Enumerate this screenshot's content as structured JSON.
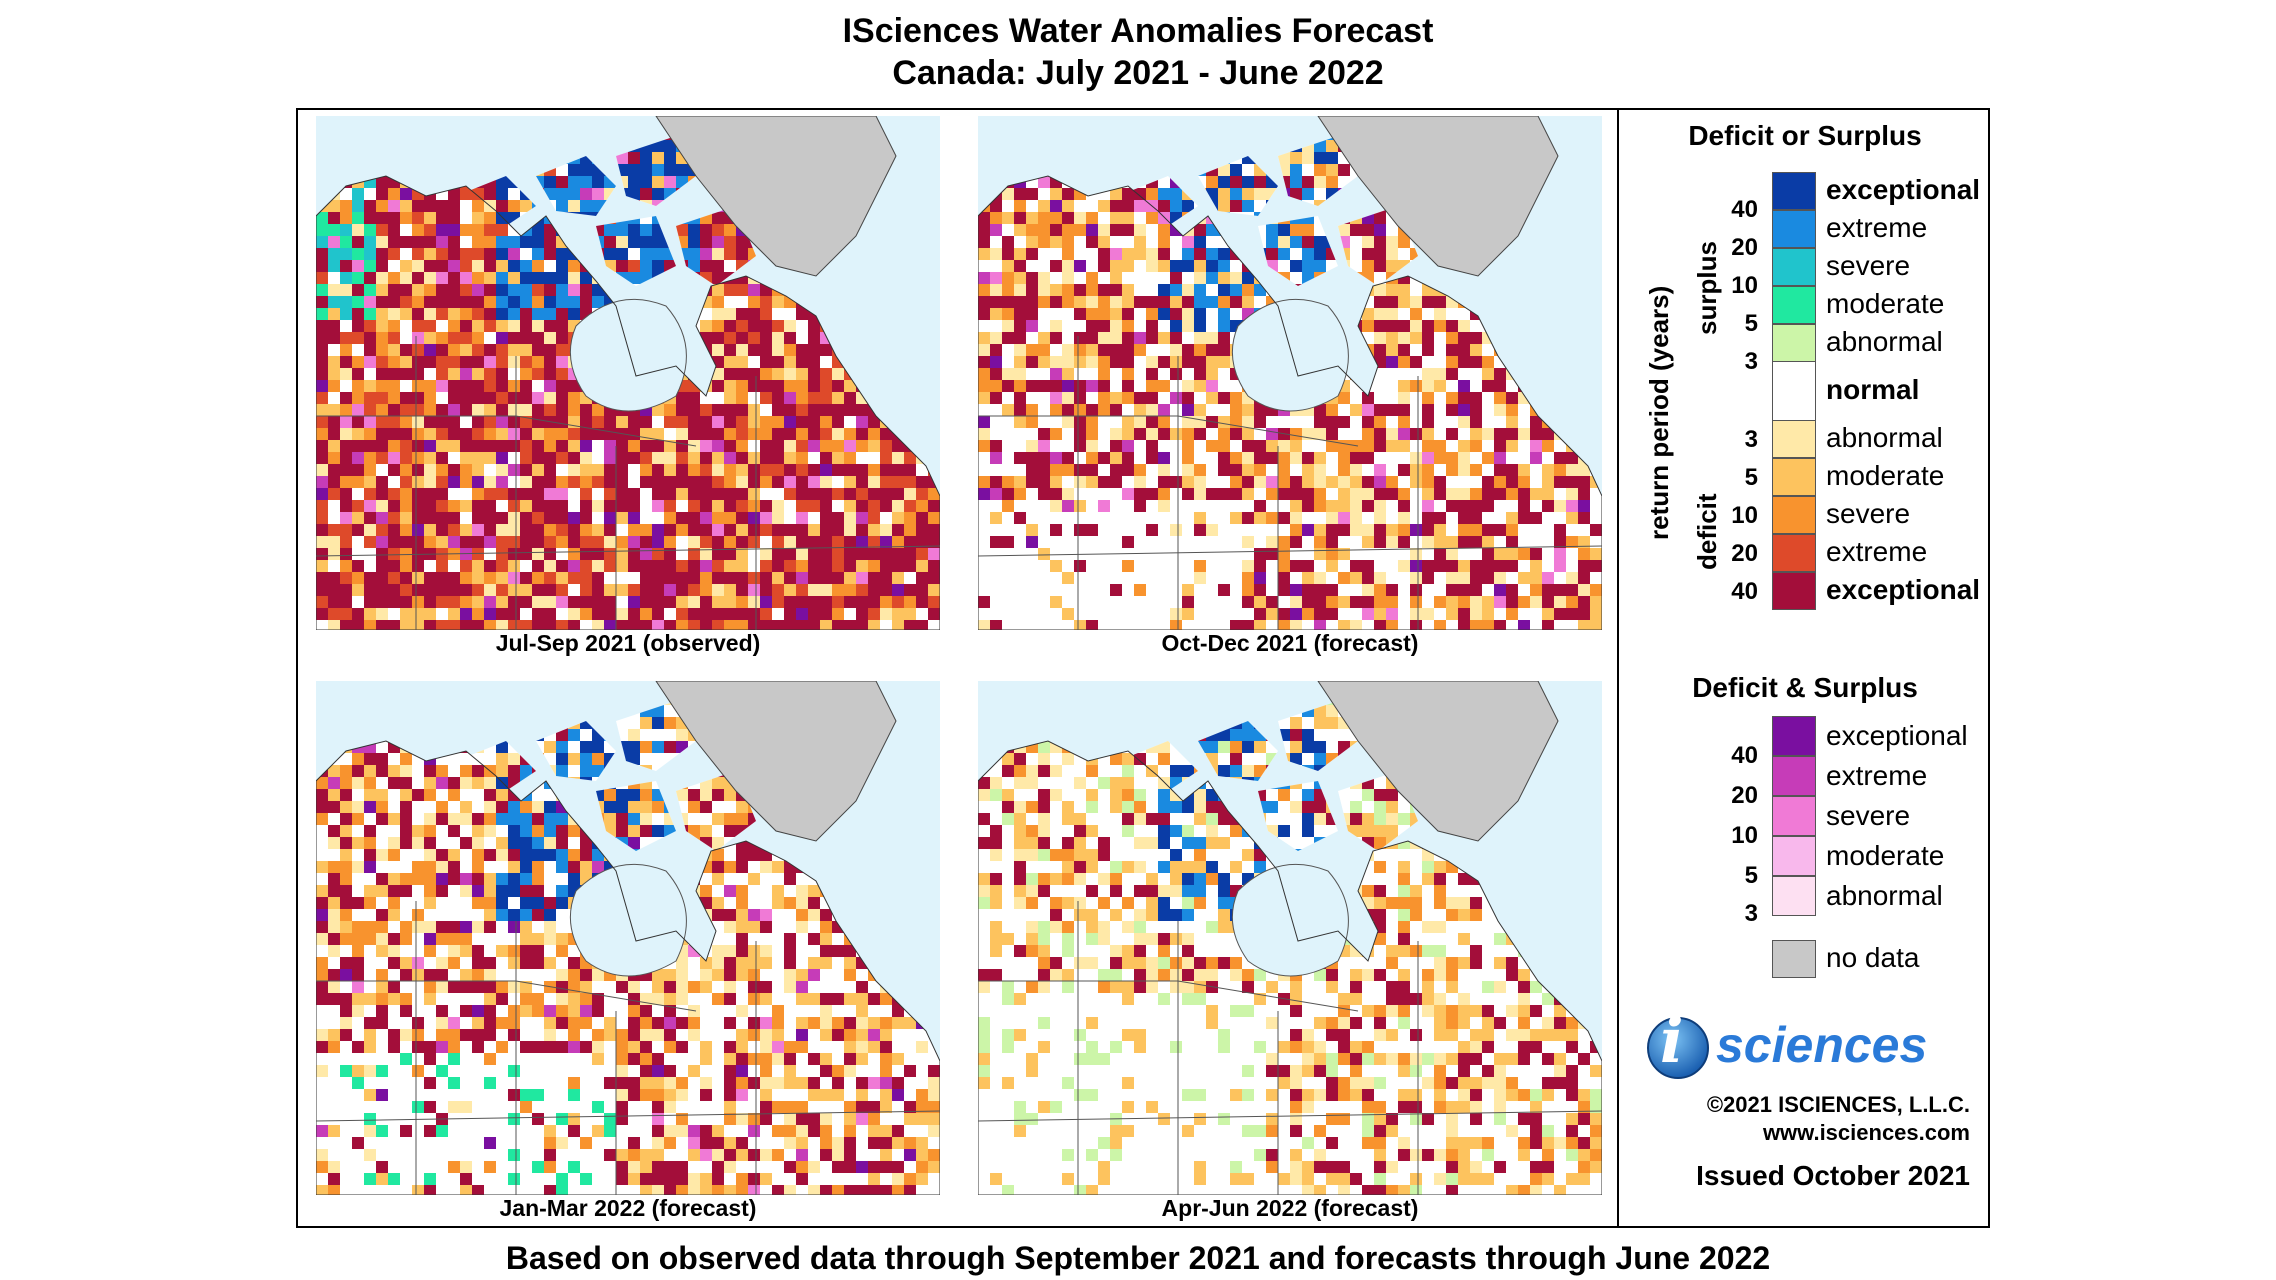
{
  "header": {
    "title": "ISciences Water Anomalies Forecast",
    "subtitle": "Canada: July 2021 - June 2022"
  },
  "panels": [
    {
      "caption": "Jul-Sep 2021 (observed)"
    },
    {
      "caption": "Oct-Dec 2021 (forecast)"
    },
    {
      "caption": "Jan-Mar 2022 (forecast)"
    },
    {
      "caption": "Apr-Jun 2022 (forecast)"
    }
  ],
  "legend": {
    "title1": "Deficit or Surplus",
    "axis_label": "return period (years)",
    "surplus_label": "surplus",
    "deficit_label": "deficit",
    "surplus": [
      {
        "label": "exceptional",
        "color": "#0a3ca6",
        "bold": true
      },
      {
        "label": "extreme",
        "color": "#1a8ae0"
      },
      {
        "label": "severe",
        "color": "#20c4cc"
      },
      {
        "label": "moderate",
        "color": "#20e8a0"
      },
      {
        "label": "abnormal",
        "color": "#ccf5a8"
      }
    ],
    "normal": {
      "label": "normal",
      "color": "#ffffff"
    },
    "deficit": [
      {
        "label": "abnormal",
        "color": "#ffe9a8"
      },
      {
        "label": "moderate",
        "color": "#fdc35e"
      },
      {
        "label": "severe",
        "color": "#f8932e"
      },
      {
        "label": "extreme",
        "color": "#de4a2a"
      },
      {
        "label": "exceptional",
        "color": "#a30e3a",
        "bold": true
      }
    ],
    "surplus_nums": [
      "40",
      "20",
      "10",
      "5",
      "3"
    ],
    "deficit_nums": [
      "3",
      "5",
      "10",
      "20",
      "40"
    ],
    "title2": "Deficit & Surplus",
    "both": [
      {
        "label": "exceptional",
        "color": "#7a0fa0"
      },
      {
        "label": "extreme",
        "color": "#c63cb8"
      },
      {
        "label": "severe",
        "color": "#f07ad6"
      },
      {
        "label": "moderate",
        "color": "#f8b8ec"
      },
      {
        "label": "abnormal",
        "color": "#fde0f2"
      }
    ],
    "both_nums": [
      "40",
      "20",
      "10",
      "5",
      "3"
    ],
    "nodata": {
      "label": "no data",
      "color": "#c8c8c8"
    }
  },
  "branding": {
    "logo_i": "i",
    "logo_text": "sciences",
    "copyright": "©2021 ISCIENCES, L.L.C.",
    "website": "www.isciences.com",
    "issued": "Issued October 2021"
  },
  "footer": "Based on observed data through September 2021 and forecasts through June 2022"
}
